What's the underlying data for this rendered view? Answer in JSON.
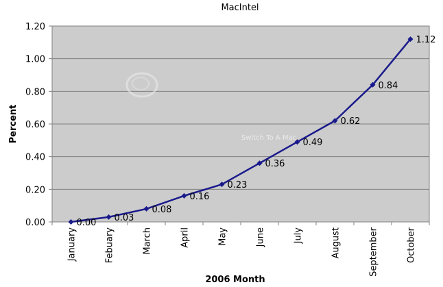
{
  "chart_data": {
    "type": "line",
    "title": "MacIntel",
    "xlabel": "2006 Month",
    "ylabel": "Percent",
    "categories": [
      "January",
      "Febuary",
      "March",
      "April",
      "May",
      "June",
      "July",
      "August",
      "September",
      "October"
    ],
    "series": [
      {
        "values": [
          0.0,
          0.03,
          0.08,
          0.16,
          0.23,
          0.36,
          0.49,
          0.62,
          0.84,
          1.12
        ],
        "labels": [
          "0.00",
          "0.03",
          "0.08",
          "0.16",
          "0.23",
          "0.36",
          "0.49",
          "0.62",
          "0.84",
          "1.12"
        ],
        "color": "#1a1a8c"
      }
    ],
    "ylim": [
      0,
      1.2
    ],
    "yticks": [
      0,
      0.2,
      0.4,
      0.6,
      0.8,
      1.0,
      1.2
    ],
    "ytick_labels": [
      "0.00",
      "0.20",
      "0.40",
      "0.60",
      "0.80",
      "1.00",
      "1.20"
    ],
    "grid": true,
    "legend": "none",
    "plot_background": "#cccccc",
    "gridline_color": "#808080"
  },
  "watermark": {
    "text": "Switch To A Mac"
  }
}
